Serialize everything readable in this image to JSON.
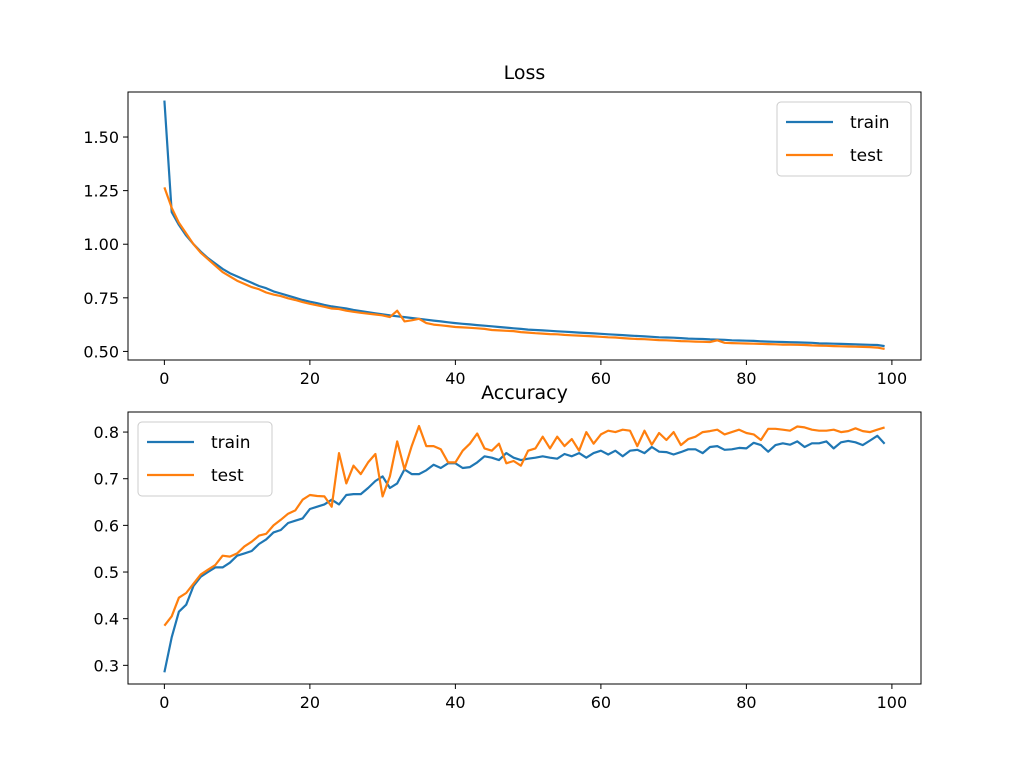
{
  "chart_data": [
    {
      "type": "line",
      "title": "Loss",
      "xlabel": "",
      "ylabel": "",
      "xlim": [
        -5,
        104
      ],
      "ylim": [
        0.46,
        1.71
      ],
      "xticks": [
        0,
        20,
        40,
        60,
        80,
        100
      ],
      "yticks": [
        0.5,
        0.75,
        1.0,
        1.25,
        1.5
      ],
      "ytick_labels": [
        "0.50",
        "0.75",
        "1.00",
        "1.25",
        "1.50"
      ],
      "grid": false,
      "legend_placement": "upper-right",
      "series": [
        {
          "name": "train",
          "color": "#1f77b4",
          "values": [
            1.67,
            1.15,
            1.09,
            1.04,
            1.0,
            0.965,
            0.935,
            0.91,
            0.885,
            0.865,
            0.85,
            0.835,
            0.82,
            0.805,
            0.795,
            0.78,
            0.77,
            0.76,
            0.75,
            0.74,
            0.732,
            0.725,
            0.717,
            0.71,
            0.705,
            0.7,
            0.693,
            0.688,
            0.683,
            0.678,
            0.673,
            0.668,
            0.664,
            0.66,
            0.656,
            0.652,
            0.648,
            0.644,
            0.64,
            0.636,
            0.632,
            0.629,
            0.626,
            0.623,
            0.62,
            0.617,
            0.614,
            0.611,
            0.608,
            0.605,
            0.602,
            0.6,
            0.598,
            0.596,
            0.594,
            0.592,
            0.59,
            0.588,
            0.586,
            0.584,
            0.582,
            0.58,
            0.578,
            0.576,
            0.574,
            0.572,
            0.57,
            0.568,
            0.566,
            0.565,
            0.564,
            0.562,
            0.56,
            0.559,
            0.558,
            0.556,
            0.555,
            0.554,
            0.552,
            0.551,
            0.55,
            0.549,
            0.547,
            0.546,
            0.545,
            0.544,
            0.543,
            0.542,
            0.541,
            0.54,
            0.538,
            0.537,
            0.536,
            0.535,
            0.534,
            0.533,
            0.532,
            0.531,
            0.53,
            0.525
          ]
        },
        {
          "name": "test",
          "color": "#ff7f0e",
          "values": [
            1.265,
            1.17,
            1.1,
            1.05,
            1.0,
            0.96,
            0.93,
            0.9,
            0.87,
            0.85,
            0.83,
            0.815,
            0.8,
            0.79,
            0.775,
            0.765,
            0.758,
            0.748,
            0.74,
            0.73,
            0.722,
            0.715,
            0.708,
            0.7,
            0.698,
            0.69,
            0.685,
            0.68,
            0.676,
            0.672,
            0.668,
            0.66,
            0.69,
            0.64,
            0.645,
            0.652,
            0.632,
            0.625,
            0.622,
            0.618,
            0.614,
            0.612,
            0.61,
            0.608,
            0.605,
            0.6,
            0.598,
            0.596,
            0.595,
            0.59,
            0.588,
            0.585,
            0.583,
            0.581,
            0.58,
            0.577,
            0.575,
            0.574,
            0.572,
            0.57,
            0.568,
            0.566,
            0.565,
            0.562,
            0.56,
            0.558,
            0.557,
            0.555,
            0.553,
            0.552,
            0.55,
            0.548,
            0.547,
            0.546,
            0.545,
            0.544,
            0.552,
            0.54,
            0.539,
            0.538,
            0.537,
            0.536,
            0.535,
            0.534,
            0.533,
            0.532,
            0.532,
            0.531,
            0.53,
            0.528,
            0.527,
            0.526,
            0.525,
            0.524,
            0.523,
            0.522,
            0.521,
            0.52,
            0.518,
            0.512
          ]
        }
      ]
    },
    {
      "type": "line",
      "title": "Accuracy",
      "xlabel": "",
      "ylabel": "",
      "xlim": [
        -5,
        104
      ],
      "ylim": [
        0.26,
        0.843
      ],
      "xticks": [
        0,
        20,
        40,
        60,
        80,
        100
      ],
      "yticks": [
        0.3,
        0.4,
        0.5,
        0.6,
        0.7,
        0.8
      ],
      "ytick_labels": [
        "0.3",
        "0.4",
        "0.5",
        "0.6",
        "0.7",
        "0.8"
      ],
      "grid": false,
      "legend_placement": "upper-left",
      "series": [
        {
          "name": "train",
          "color": "#1f77b4",
          "values": [
            0.285,
            0.36,
            0.415,
            0.43,
            0.47,
            0.49,
            0.5,
            0.51,
            0.51,
            0.52,
            0.535,
            0.54,
            0.545,
            0.56,
            0.57,
            0.585,
            0.59,
            0.605,
            0.61,
            0.615,
            0.635,
            0.64,
            0.645,
            0.655,
            0.645,
            0.665,
            0.667,
            0.667,
            0.68,
            0.695,
            0.705,
            0.68,
            0.69,
            0.72,
            0.71,
            0.71,
            0.718,
            0.73,
            0.723,
            0.733,
            0.733,
            0.723,
            0.725,
            0.735,
            0.748,
            0.745,
            0.74,
            0.755,
            0.745,
            0.74,
            0.743,
            0.745,
            0.748,
            0.745,
            0.743,
            0.753,
            0.748,
            0.755,
            0.745,
            0.755,
            0.76,
            0.752,
            0.76,
            0.748,
            0.76,
            0.762,
            0.755,
            0.768,
            0.758,
            0.757,
            0.752,
            0.757,
            0.763,
            0.763,
            0.755,
            0.768,
            0.77,
            0.762,
            0.763,
            0.766,
            0.765,
            0.777,
            0.772,
            0.758,
            0.772,
            0.776,
            0.773,
            0.78,
            0.768,
            0.776,
            0.776,
            0.78,
            0.765,
            0.778,
            0.781,
            0.778,
            0.772,
            0.782,
            0.792,
            0.775
          ]
        },
        {
          "name": "test",
          "color": "#ff7f0e",
          "values": [
            0.385,
            0.405,
            0.445,
            0.455,
            0.475,
            0.495,
            0.505,
            0.515,
            0.535,
            0.533,
            0.54,
            0.555,
            0.565,
            0.578,
            0.582,
            0.6,
            0.612,
            0.625,
            0.632,
            0.655,
            0.665,
            0.663,
            0.662,
            0.64,
            0.755,
            0.69,
            0.728,
            0.71,
            0.735,
            0.753,
            0.662,
            0.705,
            0.78,
            0.72,
            0.77,
            0.813,
            0.77,
            0.77,
            0.763,
            0.735,
            0.735,
            0.76,
            0.775,
            0.797,
            0.765,
            0.76,
            0.775,
            0.733,
            0.738,
            0.728,
            0.76,
            0.765,
            0.79,
            0.765,
            0.79,
            0.77,
            0.785,
            0.76,
            0.8,
            0.775,
            0.795,
            0.803,
            0.8,
            0.805,
            0.803,
            0.77,
            0.803,
            0.773,
            0.798,
            0.783,
            0.8,
            0.772,
            0.785,
            0.79,
            0.8,
            0.802,
            0.805,
            0.795,
            0.8,
            0.805,
            0.798,
            0.795,
            0.783,
            0.807,
            0.807,
            0.805,
            0.803,
            0.812,
            0.81,
            0.805,
            0.803,
            0.803,
            0.805,
            0.8,
            0.802,
            0.808,
            0.802,
            0.8,
            0.805,
            0.81
          ]
        }
      ]
    }
  ]
}
